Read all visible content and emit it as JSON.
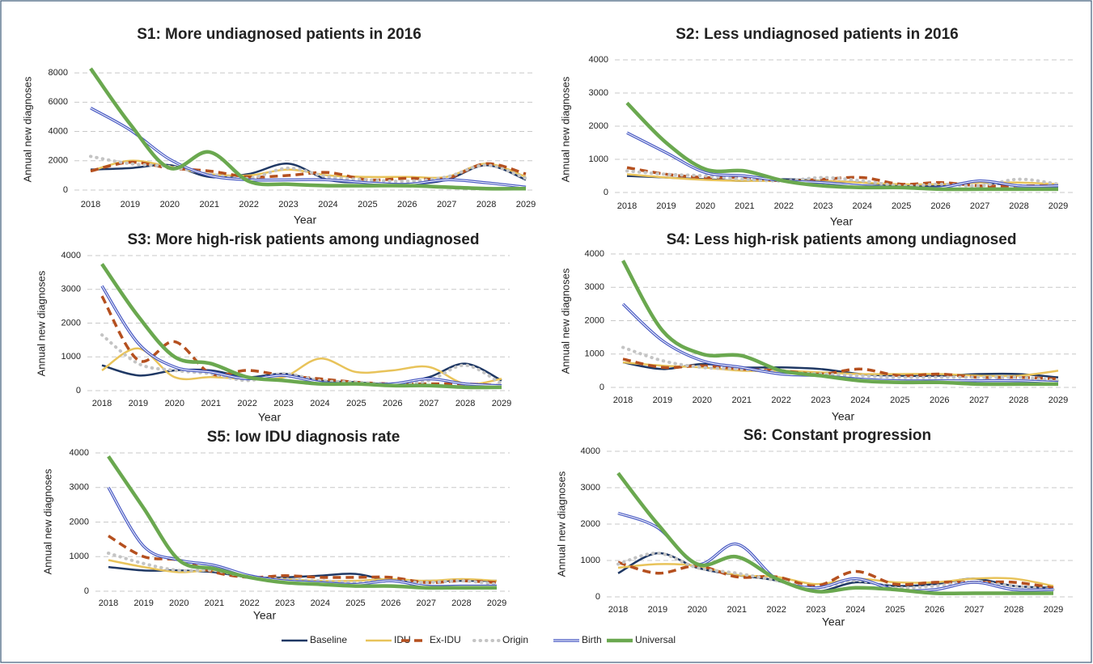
{
  "chart_data": [
    {
      "type": "line",
      "title": "S1: More undiagnosed patients in 2016",
      "xlabel": "Year",
      "ylabel": "Annual new diagnoses",
      "x": [
        2018,
        2019,
        2020,
        2021,
        2022,
        2023,
        2024,
        2025,
        2026,
        2027,
        2028,
        2029
      ],
      "ylim": [
        0,
        9000
      ],
      "yticks": [
        0,
        2000,
        4000,
        6000,
        8000
      ],
      "grid": true,
      "series": [
        {
          "values": [
            1400,
            1500,
            1700,
            900,
            1100,
            1800,
            700,
            500,
            400,
            700,
            1700,
            700
          ]
        },
        {
          "values": [
            1300,
            2000,
            1600,
            1100,
            1000,
            1400,
            1000,
            900,
            900,
            900,
            1800,
            900
          ]
        },
        {
          "values": [
            1300,
            1900,
            1500,
            1300,
            900,
            1000,
            1200,
            700,
            800,
            800,
            1800,
            1100
          ]
        },
        {
          "values": [
            2300,
            1800,
            1600,
            1100,
            800,
            1500,
            900,
            700,
            600,
            900,
            1700,
            800
          ]
        },
        {
          "values": [
            5600,
            4100,
            2100,
            1000,
            700,
            700,
            700,
            500,
            400,
            700,
            500,
            200
          ]
        },
        {
          "values": [
            8300,
            4500,
            1500,
            2600,
            600,
            400,
            300,
            300,
            300,
            200,
            100,
            100
          ]
        }
      ]
    },
    {
      "type": "line",
      "title": "S2: Less undiagnosed patients in 2016",
      "xlabel": "Year",
      "ylabel": "Annual new diagnoses",
      "x": [
        2018,
        2019,
        2020,
        2021,
        2022,
        2023,
        2024,
        2025,
        2026,
        2027,
        2028,
        2029
      ],
      "ylim": [
        0,
        4000
      ],
      "yticks": [
        0,
        1000,
        2000,
        3000,
        4000
      ],
      "grid": true,
      "series": [
        {
          "values": [
            500,
            450,
            400,
            350,
            400,
            350,
            300,
            200,
            200,
            300,
            200,
            150
          ]
        },
        {
          "values": [
            550,
            450,
            380,
            350,
            350,
            350,
            300,
            250,
            250,
            300,
            300,
            250
          ]
        },
        {
          "values": [
            750,
            550,
            450,
            450,
            350,
            400,
            450,
            250,
            300,
            200,
            200,
            200
          ]
        },
        {
          "values": [
            650,
            550,
            500,
            400,
            350,
            450,
            350,
            200,
            250,
            200,
            400,
            250
          ]
        },
        {
          "values": [
            1800,
            1200,
            600,
            500,
            350,
            300,
            200,
            150,
            150,
            350,
            200,
            200
          ]
        },
        {
          "values": [
            2700,
            1500,
            700,
            650,
            350,
            200,
            150,
            150,
            100,
            100,
            100,
            100
          ]
        }
      ]
    },
    {
      "type": "line",
      "title": "S3: More high-risk patients among undiagnosed",
      "xlabel": "Year",
      "ylabel": "Annual new diagnoses",
      "x": [
        2018,
        2019,
        2020,
        2021,
        2022,
        2023,
        2024,
        2025,
        2026,
        2027,
        2028,
        2029
      ],
      "ylim": [
        0,
        4000
      ],
      "yticks": [
        0,
        1000,
        2000,
        3000,
        4000
      ],
      "grid": true,
      "series": [
        {
          "values": [
            750,
            450,
            600,
            600,
            400,
            500,
            300,
            250,
            200,
            400,
            800,
            300
          ]
        },
        {
          "values": [
            600,
            1250,
            400,
            400,
            350,
            400,
            950,
            550,
            600,
            700,
            200,
            350
          ]
        },
        {
          "values": [
            2800,
            900,
            1450,
            500,
            600,
            450,
            350,
            250,
            200,
            200,
            200,
            150
          ]
        },
        {
          "values": [
            1650,
            800,
            600,
            500,
            300,
            500,
            300,
            250,
            200,
            300,
            750,
            200
          ]
        },
        {
          "values": [
            3100,
            1400,
            700,
            550,
            350,
            450,
            250,
            200,
            200,
            350,
            200,
            150
          ]
        },
        {
          "values": [
            3750,
            2200,
            1000,
            800,
            400,
            300,
            200,
            200,
            150,
            150,
            100,
            100
          ]
        }
      ]
    },
    {
      "type": "line",
      "title": "S4: Less high-risk patients among undiagnosed",
      "xlabel": "Year",
      "ylabel": "Annual new diagnoses",
      "x": [
        2018,
        2019,
        2020,
        2021,
        2022,
        2023,
        2024,
        2025,
        2026,
        2027,
        2028,
        2029
      ],
      "ylim": [
        0,
        4000
      ],
      "yticks": [
        0,
        1000,
        2000,
        3000,
        4000
      ],
      "grid": true,
      "series": [
        {
          "values": [
            750,
            550,
            700,
            600,
            600,
            550,
            400,
            350,
            350,
            400,
            400,
            300
          ]
        },
        {
          "values": [
            750,
            650,
            600,
            500,
            500,
            450,
            400,
            400,
            400,
            350,
            350,
            500
          ]
        },
        {
          "values": [
            850,
            600,
            650,
            550,
            500,
            400,
            550,
            350,
            400,
            300,
            300,
            250
          ]
        },
        {
          "values": [
            1200,
            800,
            600,
            550,
            450,
            400,
            350,
            300,
            300,
            300,
            300,
            200
          ]
        },
        {
          "values": [
            2500,
            1400,
            800,
            600,
            400,
            350,
            250,
            200,
            200,
            200,
            200,
            150
          ]
        },
        {
          "values": [
            3800,
            1700,
            1000,
            950,
            500,
            350,
            200,
            150,
            150,
            100,
            100,
            100
          ]
        }
      ]
    },
    {
      "type": "line",
      "title": "S5: low IDU diagnosis rate",
      "xlabel": "Year",
      "ylabel": "Annual new diagnoses",
      "x": [
        2018,
        2019,
        2020,
        2021,
        2022,
        2023,
        2024,
        2025,
        2026,
        2027,
        2028,
        2029
      ],
      "ylim": [
        0,
        4000
      ],
      "yticks": [
        0,
        1000,
        2000,
        3000,
        4000
      ],
      "grid": true,
      "series": [
        {
          "values": [
            700,
            600,
            600,
            550,
            400,
            400,
            450,
            500,
            300,
            300,
            300,
            300
          ]
        },
        {
          "values": [
            900,
            700,
            550,
            600,
            400,
            350,
            300,
            300,
            350,
            300,
            350,
            300
          ]
        },
        {
          "values": [
            1600,
            1000,
            900,
            550,
            400,
            450,
            400,
            400,
            400,
            250,
            300,
            250
          ]
        },
        {
          "values": [
            1100,
            800,
            600,
            600,
            400,
            350,
            300,
            250,
            300,
            250,
            300,
            200
          ]
        },
        {
          "values": [
            3000,
            1300,
            900,
            750,
            450,
            300,
            250,
            200,
            300,
            150,
            150,
            150
          ]
        },
        {
          "values": [
            3900,
            2400,
            900,
            650,
            400,
            250,
            200,
            150,
            150,
            100,
            100,
            100
          ]
        }
      ]
    },
    {
      "type": "line",
      "title": "S6: Constant progression",
      "xlabel": "Year",
      "ylabel": "Annual new diagnoses",
      "x": [
        2018,
        2019,
        2020,
        2021,
        2022,
        2023,
        2024,
        2025,
        2026,
        2027,
        2028,
        2029
      ],
      "ylim": [
        0,
        4000
      ],
      "yticks": [
        0,
        1000,
        2000,
        3000,
        4000
      ],
      "grid": true,
      "series": [
        {
          "values": [
            650,
            1200,
            800,
            600,
            450,
            150,
            400,
            300,
            350,
            500,
            300,
            250
          ]
        },
        {
          "values": [
            800,
            900,
            850,
            600,
            550,
            350,
            500,
            400,
            400,
            500,
            500,
            300
          ]
        },
        {
          "values": [
            950,
            650,
            850,
            550,
            550,
            300,
            700,
            350,
            400,
            400,
            400,
            250
          ]
        },
        {
          "values": [
            900,
            1200,
            800,
            650,
            450,
            250,
            450,
            250,
            300,
            400,
            300,
            200
          ]
        },
        {
          "values": [
            2300,
            1900,
            900,
            1450,
            500,
            250,
            500,
            200,
            200,
            400,
            200,
            200
          ]
        },
        {
          "values": [
            3400,
            2000,
            900,
            1100,
            500,
            150,
            250,
            200,
            100,
            100,
            100,
            100
          ]
        }
      ]
    }
  ],
  "legend": [
    {
      "name": "Baseline",
      "color": "#1f3864",
      "style": "solid"
    },
    {
      "name": "IDU",
      "color": "#e8c35a",
      "style": "solid"
    },
    {
      "name": "Ex-IDU",
      "color": "#b5501f",
      "style": "dashed"
    },
    {
      "name": "Origin",
      "color": "#c4c4c4",
      "style": "dotted"
    },
    {
      "name": "Birth",
      "color": "#4a5bc4",
      "style": "double"
    },
    {
      "name": "Universal",
      "color": "#6aa84f",
      "style": "thick"
    }
  ]
}
